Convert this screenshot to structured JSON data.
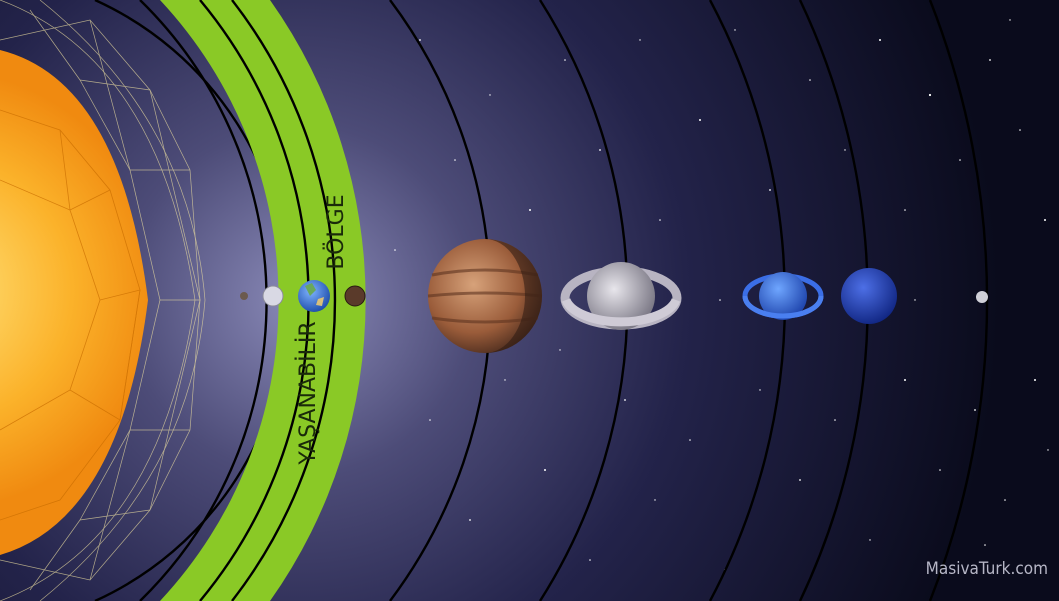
{
  "zone": {
    "label_line1": "BÖLGE",
    "label_line2": "YAŞANABİLİR",
    "band_color": "#8ac926"
  },
  "watermark": {
    "text": "MasivaTurk.com"
  },
  "colors": {
    "space": "#0b0d1f",
    "sun": "#f7a21b",
    "orbit_line": "#000000"
  },
  "bodies": [
    {
      "name": "sun",
      "icon": "sun-icon"
    },
    {
      "name": "mercury",
      "icon": "mercury-icon"
    },
    {
      "name": "venus",
      "icon": "venus-icon"
    },
    {
      "name": "earth",
      "icon": "earth-icon"
    },
    {
      "name": "mars",
      "icon": "mars-icon"
    },
    {
      "name": "jupiter",
      "icon": "jupiter-icon"
    },
    {
      "name": "saturn",
      "icon": "saturn-icon"
    },
    {
      "name": "uranus",
      "icon": "uranus-icon"
    },
    {
      "name": "neptune",
      "icon": "neptune-icon"
    },
    {
      "name": "pluto",
      "icon": "pluto-icon"
    }
  ]
}
